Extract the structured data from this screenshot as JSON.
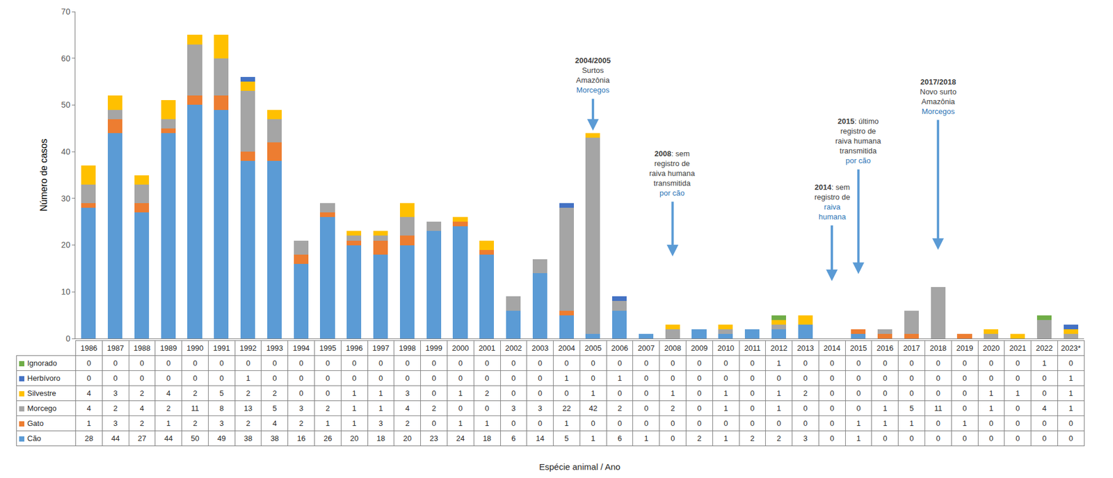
{
  "chart_data": {
    "type": "bar",
    "stacked": true,
    "grid": false,
    "tick_labels": "y",
    "x_label": "Espécie animal / Ano",
    "y_label": "Número de casos",
    "ylim": [
      0,
      70
    ],
    "yticks": [
      0,
      10,
      20,
      30,
      40,
      50,
      60,
      70
    ],
    "categories": [
      "1986",
      "1987",
      "1988",
      "1989",
      "1990",
      "1991",
      "1992",
      "1993",
      "1994",
      "1995",
      "1996",
      "1997",
      "1998",
      "1999",
      "2000",
      "2001",
      "2002",
      "2003",
      "2004",
      "2005",
      "2006",
      "2007",
      "2008",
      "2009",
      "2010",
      "2011",
      "2012",
      "2013",
      "2014",
      "2015",
      "2016",
      "2017",
      "2018",
      "2019",
      "2020",
      "2021",
      "2022",
      "2023*"
    ],
    "series": [
      {
        "name": "Cão",
        "color": "#5b9bd5",
        "values": [
          28,
          44,
          27,
          44,
          50,
          49,
          38,
          38,
          16,
          26,
          20,
          18,
          20,
          23,
          24,
          18,
          6,
          14,
          5,
          1,
          6,
          1,
          0,
          2,
          1,
          2,
          2,
          3,
          0,
          1,
          0,
          0,
          0,
          0,
          0,
          0,
          0,
          0
        ]
      },
      {
        "name": "Gato",
        "color": "#ed7d31",
        "values": [
          1,
          3,
          2,
          1,
          2,
          3,
          2,
          4,
          2,
          1,
          1,
          3,
          2,
          0,
          1,
          1,
          0,
          0,
          1,
          0,
          0,
          0,
          0,
          0,
          0,
          0,
          0,
          0,
          0,
          1,
          1,
          1,
          0,
          1,
          0,
          0,
          0,
          0
        ]
      },
      {
        "name": "Morcego",
        "color": "#a5a5a5",
        "values": [
          4,
          2,
          4,
          2,
          11,
          8,
          13,
          5,
          3,
          2,
          1,
          1,
          4,
          2,
          0,
          0,
          3,
          3,
          22,
          42,
          2,
          0,
          2,
          0,
          1,
          0,
          1,
          0,
          0,
          0,
          1,
          5,
          11,
          0,
          1,
          0,
          4,
          1
        ]
      },
      {
        "name": "Silvestre",
        "color": "#ffc000",
        "values": [
          4,
          3,
          2,
          4,
          2,
          5,
          2,
          2,
          0,
          0,
          1,
          1,
          3,
          0,
          1,
          2,
          0,
          0,
          0,
          1,
          0,
          0,
          1,
          0,
          1,
          0,
          1,
          2,
          0,
          0,
          0,
          0,
          0,
          0,
          1,
          1,
          0,
          1
        ]
      },
      {
        "name": "Herbívoro",
        "color": "#4472c4",
        "values": [
          0,
          0,
          0,
          0,
          0,
          0,
          1,
          0,
          0,
          0,
          0,
          0,
          0,
          0,
          0,
          0,
          0,
          0,
          1,
          0,
          1,
          0,
          0,
          0,
          0,
          0,
          0,
          0,
          0,
          0,
          0,
          0,
          0,
          0,
          0,
          0,
          0,
          1
        ]
      },
      {
        "name": "Ignorado",
        "color": "#70ad47",
        "values": [
          0,
          0,
          0,
          0,
          0,
          0,
          0,
          0,
          0,
          0,
          0,
          0,
          0,
          0,
          0,
          0,
          0,
          0,
          0,
          0,
          0,
          0,
          0,
          0,
          0,
          0,
          1,
          0,
          0,
          0,
          0,
          0,
          0,
          0,
          0,
          0,
          1,
          0
        ]
      }
    ],
    "annotations": [
      {
        "category": "2005",
        "y_start": 51.5,
        "y_end": 44.5,
        "lines": [
          [
            {
              "text": "2004/2005",
              "bold": true
            }
          ],
          [
            {
              "text": "Surtos"
            }
          ],
          [
            {
              "text": "Amazônia"
            }
          ],
          [
            {
              "text": "Morcegos",
              "color": "#2e75b6"
            }
          ]
        ]
      },
      {
        "category": "2008",
        "y_start": 29.5,
        "y_end": 17.6,
        "lines": [
          [
            {
              "text": "2008",
              "bold": true
            },
            {
              "text": ": sem"
            }
          ],
          [
            {
              "text": "registro de"
            }
          ],
          [
            {
              "text": "raiva humana"
            }
          ],
          [
            {
              "text": "transmitida"
            }
          ],
          [
            {
              "text": "por cão",
              "color": "#2e75b6"
            }
          ]
        ]
      },
      {
        "category": "2014",
        "y_start": 24.4,
        "y_end": 12.3,
        "lines": [
          [
            {
              "text": "2014",
              "bold": true
            },
            {
              "text": ": sem"
            }
          ],
          [
            {
              "text": "registro de"
            }
          ],
          [
            {
              "text": "raiva",
              "color": "#2e75b6"
            }
          ],
          [
            {
              "text": "humana",
              "color": "#2e75b6"
            }
          ]
        ]
      },
      {
        "category": "2015",
        "y_start": 36.4,
        "y_end": 13.8,
        "lines": [
          [
            {
              "text": "2015",
              "bold": true
            },
            {
              "text": ": último"
            }
          ],
          [
            {
              "text": "registro de"
            }
          ],
          [
            {
              "text": "raiva humana"
            }
          ],
          [
            {
              "text": "transmitida"
            }
          ],
          [
            {
              "text": "por cão",
              "color": "#2e75b6"
            }
          ]
        ]
      },
      {
        "category": "2018",
        "y_start": 47,
        "y_end": 19,
        "lines": [
          [
            {
              "text": "2017/2018",
              "bold": true
            }
          ],
          [
            {
              "text": "Novo surto"
            }
          ],
          [
            {
              "text": "Amazônia"
            }
          ],
          [
            {
              "text": "Morcegos",
              "color": "#2e75b6"
            }
          ]
        ]
      }
    ]
  }
}
